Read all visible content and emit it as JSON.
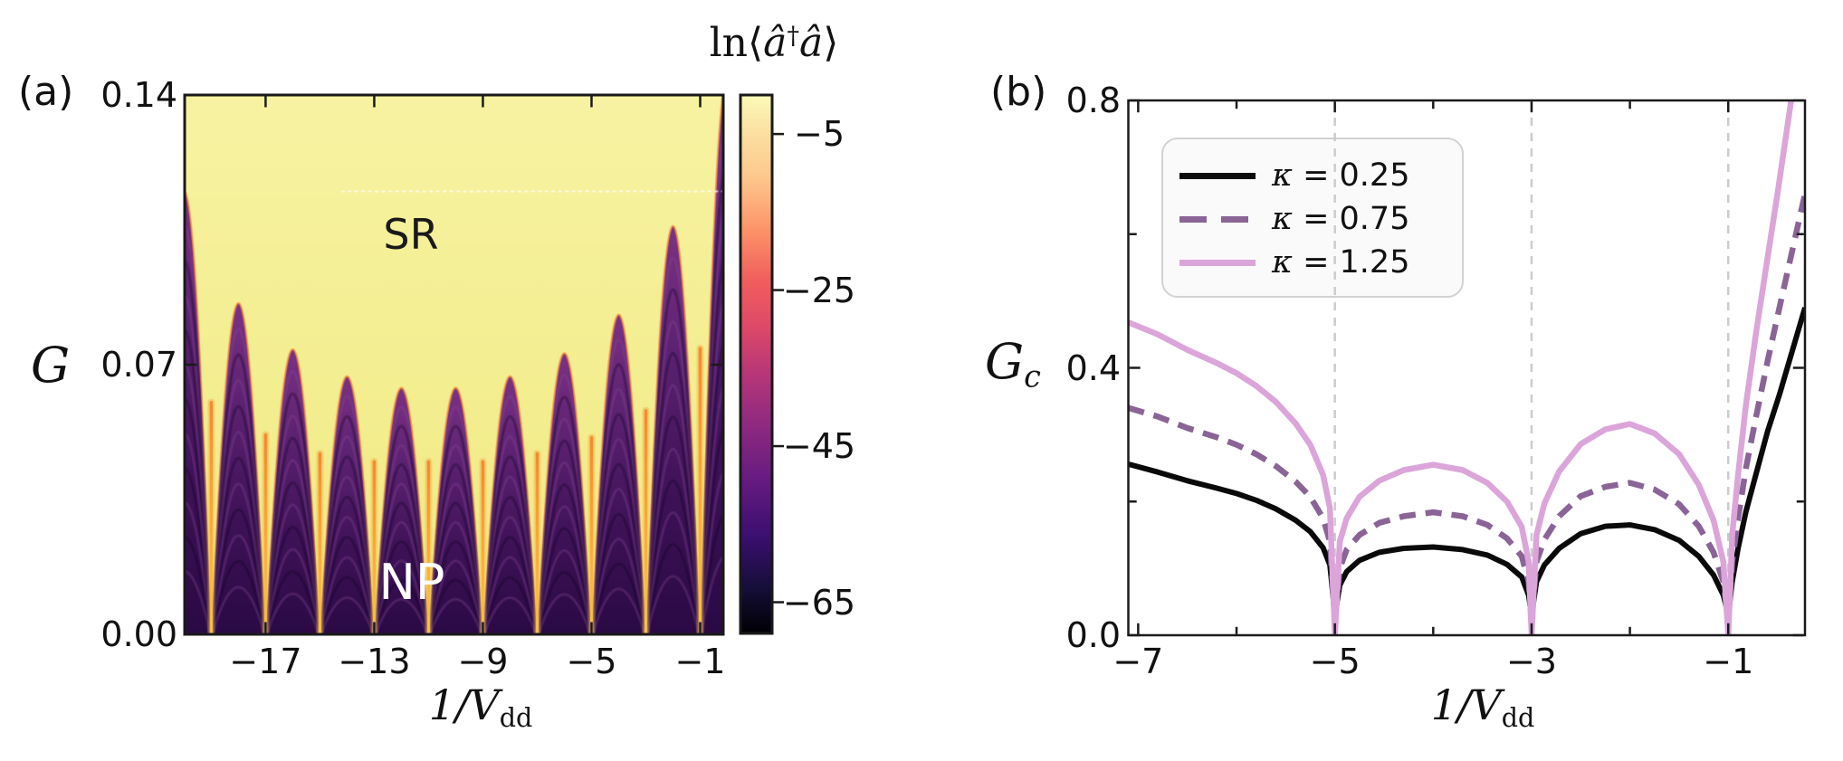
{
  "figure": {
    "background": "#ffffff",
    "frame_color": "#1a1a1a",
    "grid_color": "#cccccc"
  },
  "chart_data": [
    {
      "id": "a",
      "type": "heatmap",
      "panel_letter": "(a)",
      "xlabel": {
        "main": "1/V",
        "sub": "dd"
      },
      "ylabel": "G",
      "x_ticks": [
        {
          "label": "−17",
          "x": -17
        },
        {
          "label": "−13",
          "x": -13
        },
        {
          "label": "−9",
          "x": -9
        },
        {
          "label": "−5",
          "x": -5
        },
        {
          "label": "−1",
          "x": -1
        }
      ],
      "y_ticks": [
        {
          "label": "0.00",
          "y": 0.0
        },
        {
          "label": "0.07",
          "y": 0.07
        },
        {
          "label": "0.14",
          "y": 0.14
        }
      ],
      "xlim": [
        -19.98,
        -0.15
      ],
      "ylim": [
        0,
        0.14
      ],
      "regions": [
        {
          "label": "SR",
          "color": "#1a1a1a"
        },
        {
          "label": "NP",
          "color": "#ffffff"
        }
      ],
      "colormap": "magma",
      "np_arches": {
        "comment": "dark normal-phase lobes, period 2 in 1/Vdd, cusps of yellow at odd integers",
        "centers": [
          -20,
          -18,
          -16,
          -14,
          -12,
          -10,
          -8,
          -6,
          -4,
          -2,
          0
        ],
        "heights": [
          0.115,
          0.086,
          0.074,
          0.067,
          0.064,
          0.064,
          0.067,
          0.073,
          0.083,
          0.106,
          0.145
        ],
        "half_width": 0.93,
        "period": 2
      },
      "dotted_line_G": 0.115,
      "sr_yellow_top": "#f7f3a2",
      "sr_yellow_bottom": "#f0e983",
      "arch_colors": [
        "#7c3284",
        "#5d2272",
        "#3f1258",
        "#2a0a44"
      ],
      "slit_colors": [
        "#fcc844",
        "#f5872b"
      ],
      "colorbar": {
        "label_parts": {
          "prefix": "ln⟨",
          "a1": "â",
          "dagger": "†",
          "a2": "â",
          "suffix": "⟩"
        },
        "range": [
          0,
          -69
        ],
        "ticks": [
          {
            "label": "−5",
            "v": -5
          },
          {
            "label": "−25",
            "v": -25
          },
          {
            "label": "−45",
            "v": -45
          },
          {
            "label": "−65",
            "v": -65
          }
        ],
        "stops": [
          [
            0.0,
            "#000004"
          ],
          [
            0.08,
            "#140e36"
          ],
          [
            0.18,
            "#3b0f70"
          ],
          [
            0.28,
            "#641a80"
          ],
          [
            0.38,
            "#8c2981"
          ],
          [
            0.48,
            "#b63679"
          ],
          [
            0.57,
            "#de4968"
          ],
          [
            0.66,
            "#f1605d"
          ],
          [
            0.75,
            "#fd9468"
          ],
          [
            0.85,
            "#fec98d"
          ],
          [
            0.93,
            "#fbe0a2"
          ],
          [
            1.0,
            "#fbfbb8"
          ]
        ]
      }
    },
    {
      "id": "b",
      "type": "line",
      "panel_letter": "(b)",
      "xlabel": {
        "main": "1/V",
        "sub": "dd"
      },
      "ylabel": {
        "main": "G",
        "sub": "c"
      },
      "x_ticks": [
        {
          "label": "−7",
          "x": -7
        },
        {
          "label": "−5",
          "x": -5
        },
        {
          "label": "−3",
          "x": -3
        },
        {
          "label": "−1",
          "x": -1
        }
      ],
      "x_minor_ticks": [
        -6,
        -4,
        -2
      ],
      "y_ticks": [
        {
          "label": "0.0",
          "y": 0.0
        },
        {
          "label": "0.4",
          "y": 0.4
        },
        {
          "label": "0.8",
          "y": 0.8
        }
      ],
      "y_minor_ticks": [
        0.2,
        0.6
      ],
      "xlim": [
        -7.1,
        -0.22
      ],
      "ylim": [
        0,
        0.8
      ],
      "gridlines_x": [
        -5,
        -3,
        -1
      ],
      "legend": {
        "items": [
          {
            "symbol": "κ",
            "rest": " = 0.25"
          },
          {
            "symbol": "κ",
            "rest": " = 0.75"
          },
          {
            "symbol": "κ",
            "rest": " = 1.25"
          }
        ]
      },
      "series": [
        {
          "name": "κ = 0.25",
          "color": "#0a0a0a",
          "style": "solid",
          "width": 6,
          "points": [
            [
              -7.1,
              0.256
            ],
            [
              -6.8,
              0.244
            ],
            [
              -6.5,
              0.231
            ],
            [
              -6.2,
              0.22
            ],
            [
              -6.0,
              0.212
            ],
            [
              -5.8,
              0.202
            ],
            [
              -5.6,
              0.189
            ],
            [
              -5.4,
              0.172
            ],
            [
              -5.25,
              0.155
            ],
            [
              -5.12,
              0.131
            ],
            [
              -5.05,
              0.105
            ],
            [
              -5.0,
              0.03
            ],
            [
              -4.95,
              0.075
            ],
            [
              -4.88,
              0.095
            ],
            [
              -4.75,
              0.112
            ],
            [
              -4.55,
              0.124
            ],
            [
              -4.3,
              0.13
            ],
            [
              -4.0,
              0.132
            ],
            [
              -3.7,
              0.128
            ],
            [
              -3.45,
              0.12
            ],
            [
              -3.25,
              0.106
            ],
            [
              -3.1,
              0.087
            ],
            [
              -3.03,
              0.06
            ],
            [
              -3.0,
              0.03
            ],
            [
              -2.95,
              0.08
            ],
            [
              -2.87,
              0.105
            ],
            [
              -2.72,
              0.13
            ],
            [
              -2.5,
              0.152
            ],
            [
              -2.25,
              0.163
            ],
            [
              -2.0,
              0.165
            ],
            [
              -1.75,
              0.158
            ],
            [
              -1.5,
              0.142
            ],
            [
              -1.3,
              0.118
            ],
            [
              -1.15,
              0.09
            ],
            [
              -1.05,
              0.06
            ],
            [
              -1.0,
              0.03
            ],
            [
              -0.96,
              0.08
            ],
            [
              -0.9,
              0.13
            ],
            [
              -0.82,
              0.185
            ],
            [
              -0.72,
              0.24
            ],
            [
              -0.6,
              0.305
            ],
            [
              -0.48,
              0.36
            ],
            [
              -0.35,
              0.425
            ],
            [
              -0.22,
              0.49
            ]
          ]
        },
        {
          "name": "κ = 0.75",
          "color": "#8a6496",
          "style": "dashed",
          "width": 6.5,
          "points": [
            [
              -7.1,
              0.34
            ],
            [
              -6.8,
              0.327
            ],
            [
              -6.5,
              0.31
            ],
            [
              -6.2,
              0.296
            ],
            [
              -6.0,
              0.285
            ],
            [
              -5.8,
              0.271
            ],
            [
              -5.6,
              0.253
            ],
            [
              -5.4,
              0.23
            ],
            [
              -5.25,
              0.207
            ],
            [
              -5.12,
              0.175
            ],
            [
              -5.05,
              0.14
            ],
            [
              -5.0,
              0.02
            ],
            [
              -4.95,
              0.1
            ],
            [
              -4.88,
              0.128
            ],
            [
              -4.75,
              0.15
            ],
            [
              -4.55,
              0.168
            ],
            [
              -4.3,
              0.178
            ],
            [
              -4.0,
              0.184
            ],
            [
              -3.7,
              0.178
            ],
            [
              -3.45,
              0.165
            ],
            [
              -3.25,
              0.145
            ],
            [
              -3.1,
              0.118
            ],
            [
              -3.03,
              0.08
            ],
            [
              -3.0,
              0.02
            ],
            [
              -2.95,
              0.11
            ],
            [
              -2.87,
              0.143
            ],
            [
              -2.72,
              0.178
            ],
            [
              -2.5,
              0.208
            ],
            [
              -2.25,
              0.222
            ],
            [
              -2.0,
              0.228
            ],
            [
              -1.75,
              0.218
            ],
            [
              -1.5,
              0.196
            ],
            [
              -1.3,
              0.163
            ],
            [
              -1.15,
              0.124
            ],
            [
              -1.05,
              0.08
            ],
            [
              -1.0,
              0.02
            ],
            [
              -0.96,
              0.11
            ],
            [
              -0.9,
              0.175
            ],
            [
              -0.82,
              0.25
            ],
            [
              -0.72,
              0.325
            ],
            [
              -0.6,
              0.41
            ],
            [
              -0.48,
              0.49
            ],
            [
              -0.35,
              0.575
            ],
            [
              -0.22,
              0.66
            ]
          ]
        },
        {
          "name": "κ = 1.25",
          "color": "#dba5da",
          "style": "solid",
          "width": 6.5,
          "points": [
            [
              -7.1,
              0.468
            ],
            [
              -6.8,
              0.45
            ],
            [
              -6.5,
              0.427
            ],
            [
              -6.2,
              0.407
            ],
            [
              -6.0,
              0.392
            ],
            [
              -5.8,
              0.373
            ],
            [
              -5.6,
              0.349
            ],
            [
              -5.4,
              0.317
            ],
            [
              -5.25,
              0.285
            ],
            [
              -5.12,
              0.24
            ],
            [
              -5.05,
              0.19
            ],
            [
              -5.0,
              0.0
            ],
            [
              -4.95,
              0.14
            ],
            [
              -4.88,
              0.175
            ],
            [
              -4.75,
              0.207
            ],
            [
              -4.55,
              0.231
            ],
            [
              -4.3,
              0.247
            ],
            [
              -4.0,
              0.255
            ],
            [
              -3.7,
              0.247
            ],
            [
              -3.45,
              0.228
            ],
            [
              -3.25,
              0.2
            ],
            [
              -3.1,
              0.162
            ],
            [
              -3.03,
              0.11
            ],
            [
              -3.0,
              0.0
            ],
            [
              -2.95,
              0.15
            ],
            [
              -2.87,
              0.197
            ],
            [
              -2.72,
              0.245
            ],
            [
              -2.5,
              0.286
            ],
            [
              -2.25,
              0.308
            ],
            [
              -2.0,
              0.316
            ],
            [
              -1.75,
              0.302
            ],
            [
              -1.5,
              0.271
            ],
            [
              -1.3,
              0.225
            ],
            [
              -1.15,
              0.172
            ],
            [
              -1.05,
              0.11
            ],
            [
              -1.0,
              0.0
            ],
            [
              -0.96,
              0.15
            ],
            [
              -0.9,
              0.24
            ],
            [
              -0.82,
              0.345
            ],
            [
              -0.72,
              0.45
            ],
            [
              -0.6,
              0.565
            ],
            [
              -0.5,
              0.66
            ],
            [
              -0.4,
              0.76
            ],
            [
              -0.33,
              0.83
            ],
            [
              -0.27,
              0.9
            ]
          ]
        }
      ]
    }
  ]
}
